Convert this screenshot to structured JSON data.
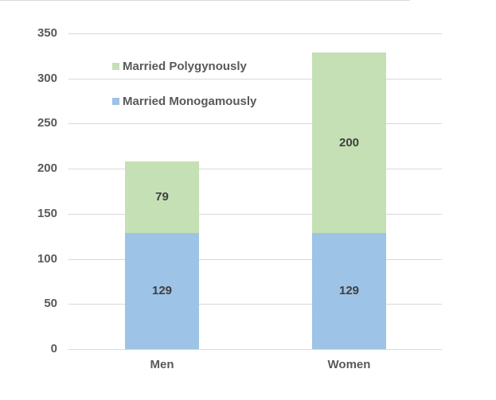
{
  "chart_data": {
    "type": "bar",
    "stacked": true,
    "title": "",
    "xlabel": "",
    "ylabel": "",
    "categories": [
      "Men",
      "Women"
    ],
    "series": [
      {
        "name": "Married Monogamously",
        "color": "#9dc3e6",
        "values": [
          129,
          129
        ]
      },
      {
        "name": "Married Polygynously",
        "color": "#c5e0b4",
        "values": [
          79,
          200
        ]
      }
    ],
    "ylim": [
      0,
      350
    ],
    "yticks": [
      "0",
      "50",
      "100",
      "150",
      "200",
      "250",
      "300",
      "350"
    ],
    "grid": true,
    "legend_position": "upper-left inside plot",
    "data_labels": {
      "Men": {
        "Married Monogamously": "129",
        "Married Polygynously": "79"
      },
      "Women": {
        "Married Monogamously": "129",
        "Married Polygynously": "200"
      }
    }
  },
  "legend": [
    {
      "label": "Married Polygynously",
      "color": "#c5e0b4"
    },
    {
      "label": "Married Monogamously",
      "color": "#9dc3e6"
    }
  ]
}
